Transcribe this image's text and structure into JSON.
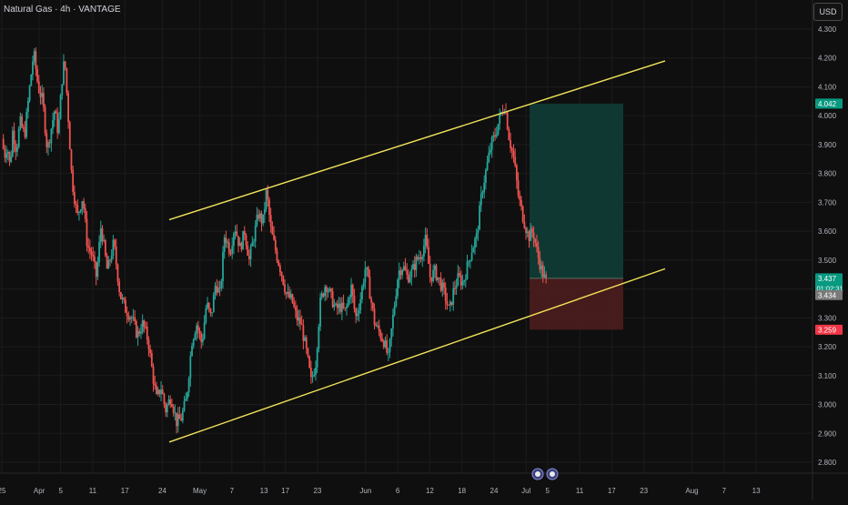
{
  "header": {
    "symbol_title": "Natural Gas · 4h · VANTAGE",
    "currency": "USD"
  },
  "colors": {
    "background": "#0f0f0f",
    "grid": "#1c1c1c",
    "up": "#26a69a",
    "down": "#ef5350",
    "channel": "#f2e35a",
    "target_zone": "#0f3b34",
    "stop_zone": "#4a1c1c",
    "label_green": "#089981",
    "label_red": "#f23645",
    "label_gray": "#7a7a7a"
  },
  "chart_data": {
    "type": "candlestick",
    "title": "Natural Gas · 4h · VANTAGE",
    "ylim": [
      2.75,
      4.35
    ],
    "y_ticks": [
      "4.300",
      "4.200",
      "4.100",
      "4.000",
      "3.900",
      "3.800",
      "3.700",
      "3.600",
      "3.500",
      "3.400",
      "3.300",
      "3.200",
      "3.100",
      "3.000",
      "2.900",
      "2.800"
    ],
    "x_ticks": [
      "25",
      "Apr",
      "5",
      "11",
      "17",
      "24",
      "May",
      "7",
      "13",
      "17",
      "23",
      "Jun",
      "6",
      "12",
      "18",
      "24",
      "Jul",
      "5",
      "11",
      "17",
      "23",
      "Aug",
      "7",
      "13"
    ],
    "price_path": [
      [
        0,
        3.92
      ],
      [
        0.3,
        3.86
      ],
      [
        0.6,
        3.9
      ],
      [
        0.9,
        3.82
      ],
      [
        1.2,
        3.95
      ],
      [
        1.6,
        3.88
      ],
      [
        2.0,
        3.98
      ],
      [
        2.5,
        3.93
      ],
      [
        3.0,
        4.08
      ],
      [
        3.5,
        4.22
      ],
      [
        4.0,
        4.1
      ],
      [
        4.5,
        4.05
      ],
      [
        5.0,
        3.88
      ],
      [
        5.4,
        3.95
      ],
      [
        5.8,
        4.02
      ],
      [
        6.2,
        3.94
      ],
      [
        6.6,
        4.12
      ],
      [
        6.9,
        4.2
      ],
      [
        7.2,
        4.05
      ],
      [
        7.7,
        3.78
      ],
      [
        8.3,
        3.65
      ],
      [
        8.9,
        3.72
      ],
      [
        9.4,
        3.55
      ],
      [
        9.9,
        3.52
      ],
      [
        10.4,
        3.44
      ],
      [
        10.9,
        3.62
      ],
      [
        11.6,
        3.46
      ],
      [
        12.3,
        3.56
      ],
      [
        13.0,
        3.38
      ],
      [
        13.6,
        3.33
      ],
      [
        14.3,
        3.3
      ],
      [
        14.9,
        3.24
      ],
      [
        15.5,
        3.28
      ],
      [
        16.1,
        3.22
      ],
      [
        16.6,
        3.1
      ],
      [
        17.0,
        3.02
      ],
      [
        17.5,
        3.06
      ],
      [
        18.0,
        2.98
      ],
      [
        18.6,
        3.03
      ],
      [
        19.2,
        2.94
      ],
      [
        19.7,
        2.95
      ],
      [
        20.3,
        3.02
      ],
      [
        20.9,
        3.22
      ],
      [
        21.4,
        3.28
      ],
      [
        22.0,
        3.21
      ],
      [
        22.5,
        3.35
      ],
      [
        23.0,
        3.3
      ],
      [
        23.5,
        3.42
      ],
      [
        24.0,
        3.38
      ],
      [
        24.5,
        3.59
      ],
      [
        25.1,
        3.53
      ],
      [
        25.6,
        3.62
      ],
      [
        26.2,
        3.54
      ],
      [
        26.7,
        3.6
      ],
      [
        27.2,
        3.5
      ],
      [
        27.7,
        3.58
      ],
      [
        28.2,
        3.66
      ],
      [
        28.7,
        3.63
      ],
      [
        29.1,
        3.74
      ],
      [
        29.6,
        3.6
      ],
      [
        30.2,
        3.52
      ],
      [
        30.8,
        3.45
      ],
      [
        31.3,
        3.38
      ],
      [
        31.9,
        3.36
      ],
      [
        32.4,
        3.3
      ],
      [
        32.9,
        3.28
      ],
      [
        33.5,
        3.18
      ],
      [
        34.0,
        3.08
      ],
      [
        34.5,
        3.14
      ],
      [
        35.0,
        3.35
      ],
      [
        35.6,
        3.42
      ],
      [
        36.1,
        3.38
      ],
      [
        36.7,
        3.33
      ],
      [
        37.2,
        3.34
      ],
      [
        37.8,
        3.32
      ],
      [
        38.4,
        3.41
      ],
      [
        38.9,
        3.3
      ],
      [
        39.4,
        3.36
      ],
      [
        40.0,
        3.48
      ],
      [
        40.5,
        3.38
      ],
      [
        41.0,
        3.28
      ],
      [
        41.5,
        3.25
      ],
      [
        42.0,
        3.22
      ],
      [
        42.5,
        3.16
      ],
      [
        43.0,
        3.3
      ],
      [
        43.6,
        3.46
      ],
      [
        44.1,
        3.48
      ],
      [
        44.6,
        3.44
      ],
      [
        45.1,
        3.46
      ],
      [
        45.6,
        3.5
      ],
      [
        46.1,
        3.52
      ],
      [
        46.6,
        3.57
      ],
      [
        47.1,
        3.44
      ],
      [
        47.6,
        3.46
      ],
      [
        48.1,
        3.43
      ],
      [
        48.7,
        3.38
      ],
      [
        49.2,
        3.32
      ],
      [
        49.7,
        3.4
      ],
      [
        50.2,
        3.44
      ],
      [
        50.7,
        3.42
      ],
      [
        51.2,
        3.48
      ],
      [
        51.7,
        3.54
      ],
      [
        52.2,
        3.58
      ],
      [
        52.8,
        3.74
      ],
      [
        53.3,
        3.82
      ],
      [
        53.8,
        3.9
      ],
      [
        54.3,
        3.94
      ],
      [
        54.8,
        4.0
      ],
      [
        55.3,
        4.04
      ],
      [
        55.8,
        3.92
      ],
      [
        56.3,
        3.85
      ],
      [
        56.8,
        3.72
      ],
      [
        57.3,
        3.65
      ],
      [
        57.9,
        3.58
      ],
      [
        58.4,
        3.6
      ],
      [
        58.9,
        3.52
      ],
      [
        59.4,
        3.46
      ],
      [
        59.9,
        3.42
      ]
    ],
    "series": [
      {
        "name": "Upper channel line",
        "points": [
          [
            "Apr 25",
            3.64
          ],
          [
            "Jul 21",
            4.19
          ]
        ]
      },
      {
        "name": "Lower channel line",
        "points": [
          [
            "Apr 25",
            2.87
          ],
          [
            "Jul 21",
            3.47
          ]
        ]
      }
    ],
    "position": {
      "entry": 3.437,
      "target": 4.042,
      "stop": 3.259
    },
    "price_labels": [
      {
        "text": "4.042",
        "value": 4.042,
        "color": "#089981"
      },
      {
        "text": "3.437",
        "value": 3.437,
        "color": "#089981",
        "sub": "01:02:31"
      },
      {
        "text": "3.434",
        "value": 3.434,
        "color": "#7a7a7a"
      },
      {
        "text": "3.259",
        "value": 3.259,
        "color": "#f23645"
      }
    ],
    "grid": true
  }
}
